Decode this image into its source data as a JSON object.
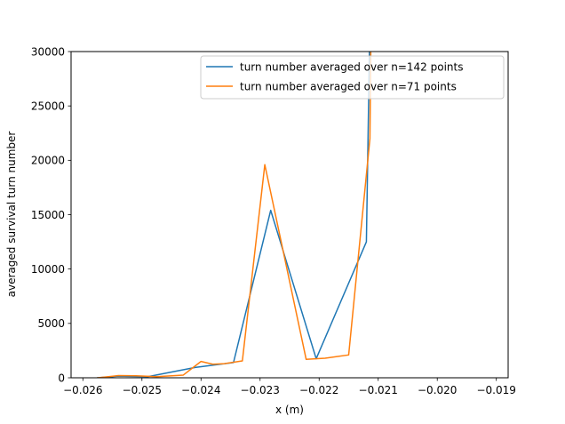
{
  "chart_data": {
    "type": "line",
    "xlabel": "x (m)",
    "ylabel": "averaged survival turn number",
    "xlim": [
      -0.0262,
      -0.0188
    ],
    "ylim": [
      0,
      30000
    ],
    "x_ticks": [
      -0.026,
      -0.025,
      -0.024,
      -0.023,
      -0.022,
      -0.021,
      -0.02,
      -0.019
    ],
    "x_tick_labels": [
      "−0.026",
      "−0.025",
      "−0.024",
      "−0.023",
      "−0.022",
      "−0.021",
      "−0.020",
      "−0.019"
    ],
    "y_ticks": [
      0,
      5000,
      10000,
      15000,
      20000,
      25000,
      30000
    ],
    "y_tick_labels": [
      "0",
      "5000",
      "10000",
      "15000",
      "20000",
      "25000",
      "30000"
    ],
    "legend_position": "top-right",
    "grid": false,
    "series": [
      {
        "name": "turn number averaged over n=142 points",
        "color": "#1f77b4",
        "x": [
          -0.02575,
          -0.0254,
          -0.0249,
          -0.0241,
          -0.02345,
          -0.02282,
          -0.02205,
          -0.0212,
          -0.02114
        ],
        "y": [
          0,
          150,
          100,
          950,
          1400,
          15400,
          1750,
          12500,
          33000
        ]
      },
      {
        "name": "turn number averaged over n=71 points",
        "color": "#ff7f0e",
        "x": [
          -0.02575,
          -0.0254,
          -0.0251,
          -0.02475,
          -0.0243,
          -0.024,
          -0.0238,
          -0.0236,
          -0.0233,
          -0.02292,
          -0.02222,
          -0.0219,
          -0.0215,
          -0.02114,
          -0.02112
        ],
        "y": [
          0,
          200,
          180,
          100,
          250,
          1500,
          1250,
          1300,
          1550,
          19600,
          1700,
          1800,
          2100,
          22000,
          33000
        ]
      }
    ]
  }
}
